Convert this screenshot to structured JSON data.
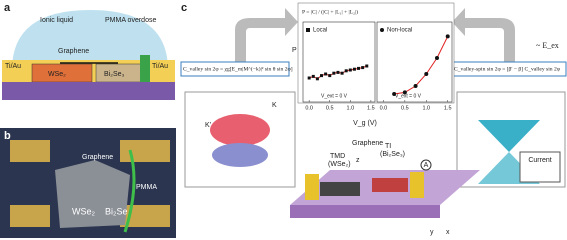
{
  "panels": {
    "a": {
      "label": "a",
      "texts": {
        "ionic": "Ionic liquid",
        "pmma": "PMMA overdose",
        "graphene": "Graphene",
        "tiau_left": "Ti/Au",
        "tiau_right": "Ti/Au",
        "wse2": "WSe₂",
        "bi2se3": "Bi₂Se₃"
      }
    },
    "b": {
      "label": "b",
      "texts": {
        "graphene": "Graphene",
        "pmma": "PMMA",
        "wse2": "WSe₂",
        "bi2se3": "Bi₂Se"
      }
    },
    "c": {
      "label": "c",
      "equations": {
        "left": "C_valley sin 2φ = χg[E_m|M^(−k)|² sin θ sin 2φ]",
        "right": "C_valley-spin sin 2φ = [β' − β] C_valley sin 2φ",
        "top": "P = |C| / (|C| + |L₁| + |L₂|)",
        "eex": "~ E_ex"
      },
      "plots": [
        {
          "legend": "Local",
          "annotation": "V_ext = 0 V",
          "xlim": [
            -0.15,
            1.6
          ],
          "ylim": [
            0,
            1
          ],
          "xticks": [
            {
              "value": 0,
              "label": "0.0"
            },
            {
              "value": 0.5,
              "label": "0.5"
            },
            {
              "value": 1,
              "label": "1.0"
            },
            {
              "value": 1.5,
              "label": "1.5"
            }
          ],
          "x": [
            0,
            0.1,
            0.2,
            0.3,
            0.4,
            0.5,
            0.6,
            0.7,
            0.8,
            0.9,
            1.0,
            1.1,
            1.2,
            1.3,
            1.4
          ],
          "y": [
            0.3,
            0.32,
            0.29,
            0.33,
            0.35,
            0.33,
            0.36,
            0.37,
            0.36,
            0.39,
            0.4,
            0.41,
            0.42,
            0.43,
            0.45
          ]
        },
        {
          "legend": "Non-local",
          "annotation": "V_ext = 0 V",
          "xlim": [
            -0.15,
            1.6
          ],
          "ylim": [
            0,
            1
          ],
          "xticks": [
            {
              "value": 0,
              "label": "0.0"
            },
            {
              "value": 0.5,
              "label": "0.5"
            },
            {
              "value": 1,
              "label": "1.0"
            },
            {
              "value": 1.5,
              "label": "1.5"
            }
          ],
          "x": [
            0.25,
            0.5,
            0.75,
            1.0,
            1.25,
            1.5
          ],
          "y": [
            0.1,
            0.12,
            0.2,
            0.35,
            0.55,
            0.82
          ]
        }
      ],
      "ylabel": "P",
      "xlabel": "V_g (V)",
      "device": {
        "graphene": "Graphene",
        "tmd": "TMD",
        "tmd2": "(WSe₂)",
        "ti": "TI",
        "ti2": "(Bi₂Se₃)",
        "current": "Current",
        "ammeter": "A",
        "kprime": "K'",
        "k": "K",
        "z": "z",
        "x": "x",
        "y": "y"
      }
    }
  }
}
